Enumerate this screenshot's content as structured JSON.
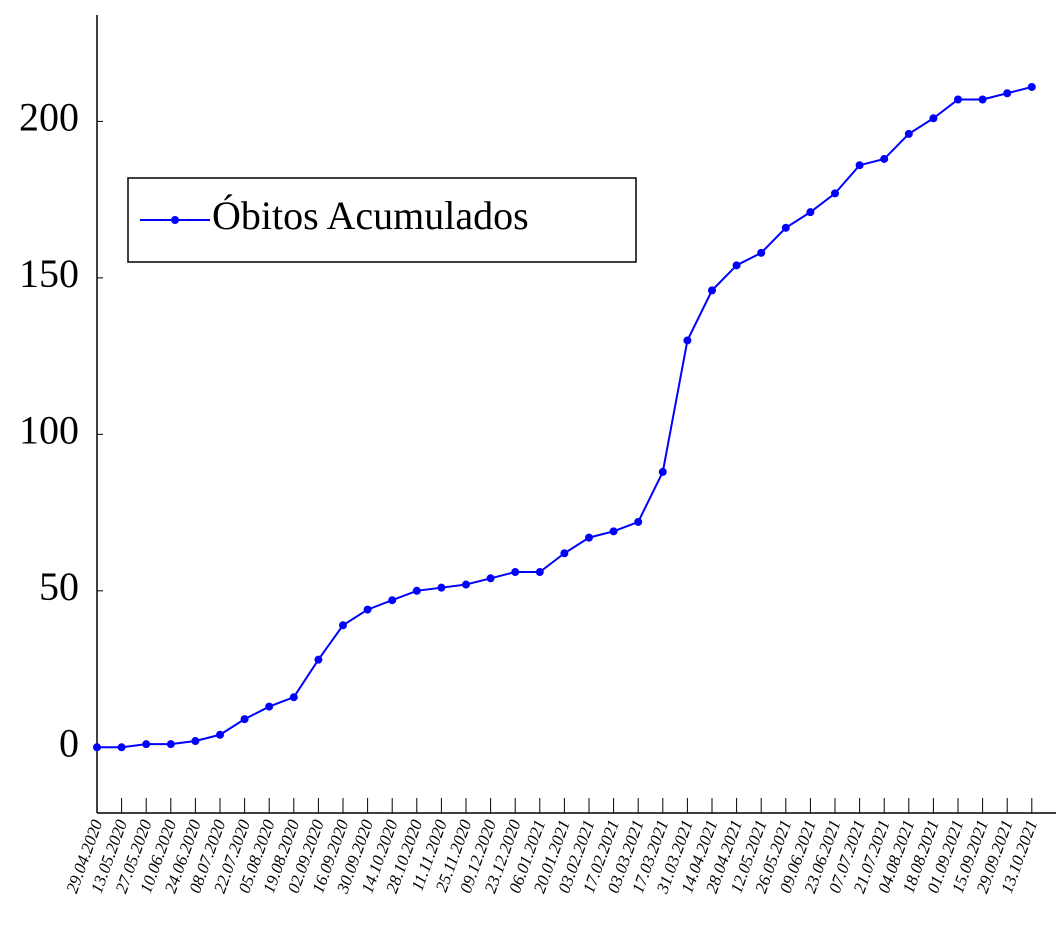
{
  "chart_data": {
    "type": "line",
    "categories": [
      "29.04.2020",
      "13.05.2020",
      "27.05.2020",
      "10.06.2020",
      "24.06.2020",
      "08.07.2020",
      "22.07.2020",
      "05.08.2020",
      "19.08.2020",
      "02.09.2020",
      "16.09.2020",
      "30.09.2020",
      "14.10.2020",
      "28.10.2020",
      "11.11.2020",
      "25.11.2020",
      "09.12.2020",
      "23.12.2020",
      "06.01.2021",
      "20.01.2021",
      "03.02.2021",
      "17.02.2021",
      "03.03.2021",
      "17.03.2021",
      "31.03.2021",
      "14.04.2021",
      "28.04.2021",
      "12.05.2021",
      "26.05.2021",
      "09.06.2021",
      "23.06.2021",
      "07.07.2021",
      "21.07.2021",
      "04.08.2021",
      "18.08.2021",
      "01.09.2021",
      "15.09.2021",
      "29.09.2021",
      "13.10.2021"
    ],
    "series": [
      {
        "name": "Óbitos Acumulados",
        "color": "#0000ff",
        "values": [
          0,
          0,
          1,
          1,
          2,
          4,
          9,
          13,
          16,
          28,
          39,
          44,
          47,
          50,
          51,
          52,
          54,
          56,
          56,
          62,
          67,
          69,
          72,
          88,
          130,
          146,
          154,
          158,
          166,
          171,
          177,
          186,
          188,
          196,
          201,
          207,
          207,
          209,
          211
        ]
      }
    ],
    "ylim": [
      -21,
      234
    ],
    "yticks": [
      0,
      50,
      100,
      150,
      200
    ],
    "legend": "upper left"
  }
}
